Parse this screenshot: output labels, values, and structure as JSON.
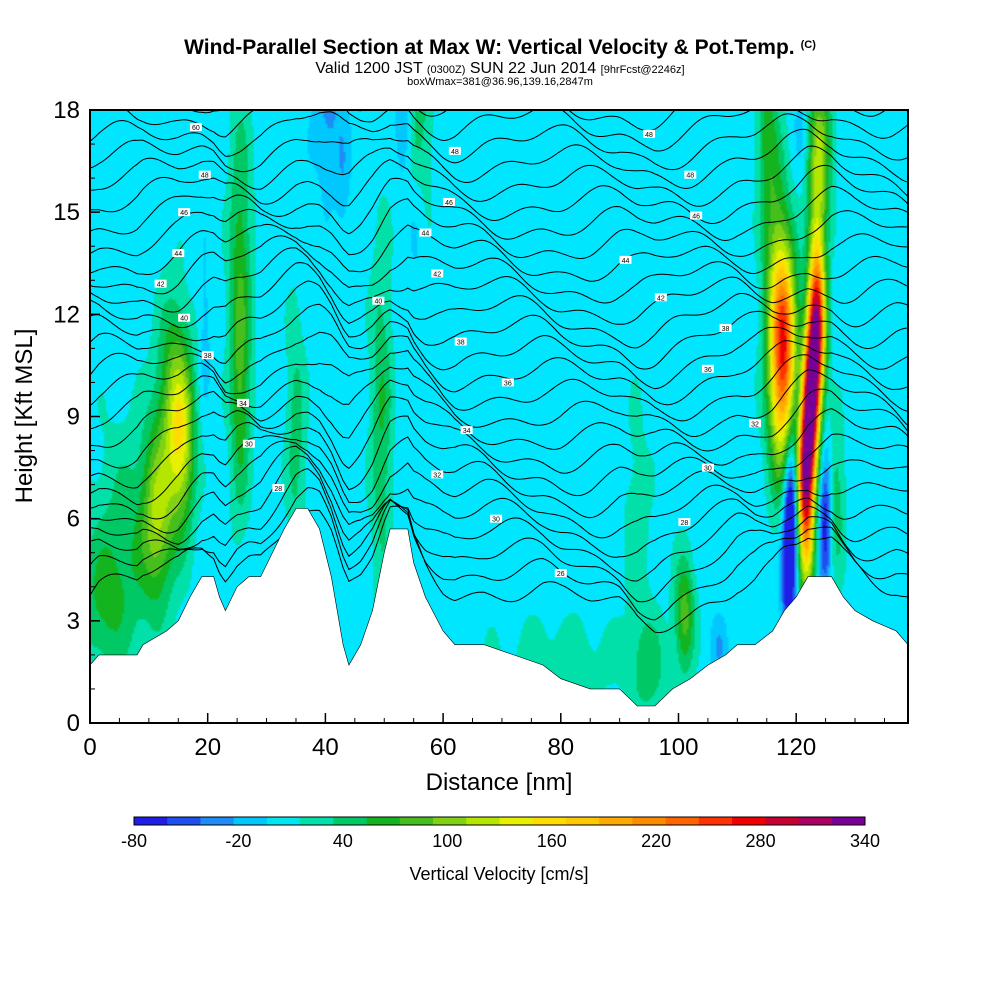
{
  "titles": {
    "main": "Wind-Parallel Section at Max W: Vertical Velocity & Pot.Temp.",
    "copyright": "(C)",
    "valid_prefix": "Valid 1200 JST",
    "valid_utc": "(0300Z)",
    "valid_date": "SUN 22 Jun 2014",
    "forecast": "[9hrFcst@2246z]",
    "boxwmax": "boxWmax=381@36.96,139.16,2847m"
  },
  "chart_data": {
    "type": "heatmap",
    "xlabel": "Distance [nm]",
    "ylabel": "Height [Kft MSL]",
    "xlim": [
      0,
      139
    ],
    "ylim": [
      0,
      18
    ],
    "x_ticks": [
      0,
      20,
      40,
      60,
      80,
      100,
      120
    ],
    "y_ticks": [
      0,
      3,
      6,
      9,
      12,
      15,
      18
    ],
    "grid": false,
    "colorbar": {
      "label": "Vertical Velocity [cm/s]",
      "placement": "bottom",
      "tick_labels": [
        -80,
        -20,
        40,
        100,
        160,
        220,
        280,
        340
      ],
      "levels": [
        -80,
        -60,
        -40,
        -20,
        0,
        20,
        40,
        60,
        80,
        100,
        120,
        140,
        160,
        180,
        200,
        220,
        240,
        260,
        280,
        300,
        320,
        340
      ],
      "colors": [
        "#1e1ee6",
        "#1e50f0",
        "#1e8cf5",
        "#00c8ff",
        "#00e6f0",
        "#00e0a8",
        "#00c864",
        "#14b41e",
        "#46be1e",
        "#82d214",
        "#b4e600",
        "#e6f000",
        "#ffdc00",
        "#ffc800",
        "#ffaa00",
        "#ff8c00",
        "#ff6400",
        "#ff3200",
        "#f00000",
        "#c80032",
        "#aa0064",
        "#780096"
      ],
      "background_value_color": "#00e6ff"
    },
    "terrain": [
      [
        0,
        1.7
      ],
      [
        1.5,
        2.0
      ],
      [
        8,
        2.0
      ],
      [
        9,
        2.3
      ],
      [
        13,
        2.7
      ],
      [
        15,
        3.0
      ],
      [
        17,
        3.7
      ],
      [
        19,
        4.3
      ],
      [
        21,
        4.3
      ],
      [
        22,
        3.7
      ],
      [
        23,
        3.3
      ],
      [
        25,
        4.0
      ],
      [
        27,
        4.3
      ],
      [
        29,
        4.3
      ],
      [
        31,
        5.0
      ],
      [
        33,
        5.7
      ],
      [
        35,
        6.3
      ],
      [
        37,
        6.3
      ],
      [
        39,
        5.7
      ],
      [
        41,
        4.3
      ],
      [
        42,
        3.3
      ],
      [
        43,
        2.3
      ],
      [
        44,
        1.7
      ],
      [
        46,
        2.3
      ],
      [
        48,
        3.3
      ],
      [
        50,
        5.0
      ],
      [
        51,
        5.7
      ],
      [
        54,
        5.7
      ],
      [
        55,
        4.7
      ],
      [
        57,
        3.7
      ],
      [
        60,
        2.7
      ],
      [
        62,
        2.3
      ],
      [
        67,
        2.3
      ],
      [
        72,
        2.0
      ],
      [
        77,
        1.7
      ],
      [
        80,
        1.3
      ],
      [
        85,
        1.0
      ],
      [
        90,
        1.0
      ],
      [
        93,
        0.5
      ],
      [
        96,
        0.5
      ],
      [
        99,
        1.0
      ],
      [
        102,
        1.3
      ],
      [
        105,
        1.7
      ],
      [
        108,
        2.0
      ],
      [
        110,
        2.3
      ],
      [
        113,
        2.3
      ],
      [
        116,
        2.7
      ],
      [
        118,
        3.3
      ],
      [
        120,
        3.7
      ],
      [
        122,
        4.3
      ],
      [
        126,
        4.3
      ],
      [
        128,
        3.7
      ],
      [
        130,
        3.3
      ],
      [
        133,
        3.0
      ],
      [
        137,
        2.7
      ],
      [
        139,
        2.3
      ]
    ],
    "theta_contours": {
      "base_kft": 2.8,
      "spacing_kft": 0.58,
      "count": 27,
      "labels": [
        {
          "x": 18,
          "y": 17.5,
          "text": "60"
        },
        {
          "x": 19.5,
          "y": 16.1,
          "text": "48"
        },
        {
          "x": 16,
          "y": 15.0,
          "text": "46"
        },
        {
          "x": 15,
          "y": 13.8,
          "text": "44"
        },
        {
          "x": 12,
          "y": 12.9,
          "text": "42"
        },
        {
          "x": 16,
          "y": 11.9,
          "text": "40"
        },
        {
          "x": 20,
          "y": 10.8,
          "text": "38"
        },
        {
          "x": 26,
          "y": 9.4,
          "text": "34"
        },
        {
          "x": 27,
          "y": 8.2,
          "text": "30"
        },
        {
          "x": 32,
          "y": 6.9,
          "text": "28"
        },
        {
          "x": 49,
          "y": 12.4,
          "text": "40"
        },
        {
          "x": 62,
          "y": 16.8,
          "text": "48"
        },
        {
          "x": 61,
          "y": 15.3,
          "text": "46"
        },
        {
          "x": 57,
          "y": 14.4,
          "text": "44"
        },
        {
          "x": 59,
          "y": 13.2,
          "text": "42"
        },
        {
          "x": 63,
          "y": 11.2,
          "text": "38"
        },
        {
          "x": 71,
          "y": 10.0,
          "text": "36"
        },
        {
          "x": 64,
          "y": 8.6,
          "text": "34"
        },
        {
          "x": 59,
          "y": 7.3,
          "text": "32"
        },
        {
          "x": 69,
          "y": 6.0,
          "text": "30"
        },
        {
          "x": 80,
          "y": 4.4,
          "text": "26"
        },
        {
          "x": 95,
          "y": 17.3,
          "text": "48"
        },
        {
          "x": 102,
          "y": 16.1,
          "text": "48"
        },
        {
          "x": 103,
          "y": 14.9,
          "text": "46"
        },
        {
          "x": 91,
          "y": 13.6,
          "text": "44"
        },
        {
          "x": 97,
          "y": 12.5,
          "text": "42"
        },
        {
          "x": 108,
          "y": 11.6,
          "text": "38"
        },
        {
          "x": 105,
          "y": 10.4,
          "text": "36"
        },
        {
          "x": 113,
          "y": 8.8,
          "text": "32"
        },
        {
          "x": 105,
          "y": 7.5,
          "text": "30"
        },
        {
          "x": 101,
          "y": 5.9,
          "text": "28"
        }
      ]
    },
    "features": [
      {
        "x": 15.5,
        "y": 8.3,
        "sx": 1.6,
        "sy": 1.8,
        "value": 115
      },
      {
        "x": 11.5,
        "y": 6.2,
        "sx": 1.8,
        "sy": 1.7,
        "value": 90
      },
      {
        "x": 14,
        "y": 9.8,
        "sx": 2.0,
        "sy": 2.0,
        "value": 60
      },
      {
        "x": 7,
        "y": 5.2,
        "sx": 4.5,
        "sy": 2.5,
        "value": 40
      },
      {
        "x": 2,
        "y": 3.5,
        "sx": 3,
        "sy": 1.5,
        "value": 40
      },
      {
        "x": 19.5,
        "y": 11.5,
        "sx": 0.7,
        "sy": 1.6,
        "value": -20
      },
      {
        "x": 25.5,
        "y": 13.5,
        "sx": 1.4,
        "sy": 3.5,
        "value": 55
      },
      {
        "x": 25.5,
        "y": 9.5,
        "sx": 1.2,
        "sy": 2.5,
        "value": 45
      },
      {
        "x": 35,
        "y": 8.5,
        "sx": 1.2,
        "sy": 2.5,
        "value": 40
      },
      {
        "x": 40.5,
        "y": 17.8,
        "sx": 1.8,
        "sy": 1.5,
        "value": -35
      },
      {
        "x": 43,
        "y": 16.0,
        "sx": 0.8,
        "sy": 1.2,
        "value": -20
      },
      {
        "x": 49.5,
        "y": 9.0,
        "sx": 1.3,
        "sy": 3.5,
        "value": 50
      },
      {
        "x": 53.5,
        "y": 17.8,
        "sx": 1.0,
        "sy": 1.5,
        "value": -50
      },
      {
        "x": 55.5,
        "y": 17.5,
        "sx": 1.8,
        "sy": 1.8,
        "value": 45
      },
      {
        "x": 55.5,
        "y": 15.0,
        "sx": 1.0,
        "sy": 1.5,
        "value": -20
      },
      {
        "x": 80,
        "y": 1.8,
        "sx": 9,
        "sy": 1.0,
        "value": 20
      },
      {
        "x": 95,
        "y": 1.6,
        "sx": 2,
        "sy": 1.1,
        "value": 40
      },
      {
        "x": 101,
        "y": 3.2,
        "sx": 1.2,
        "sy": 1.2,
        "value": 80
      },
      {
        "x": 107,
        "y": 2.2,
        "sx": 1.0,
        "sy": 0.6,
        "value": -30
      },
      {
        "x": 93,
        "y": 6.0,
        "sx": 1.8,
        "sy": 2.5,
        "value": 20
      },
      {
        "x": 118,
        "y": 11.5,
        "sx": 1.5,
        "sy": 1.8,
        "value": 170
      },
      {
        "x": 117.5,
        "y": 9.5,
        "sx": 1.6,
        "sy": 2.0,
        "value": 120
      },
      {
        "x": 116.5,
        "y": 13.5,
        "sx": 1.6,
        "sy": 2.5,
        "value": 70
      },
      {
        "x": 122.5,
        "y": 9.5,
        "sx": 1.0,
        "sy": 1.4,
        "value": 330
      },
      {
        "x": 123.5,
        "y": 11.5,
        "sx": 1.0,
        "sy": 1.4,
        "value": 230
      },
      {
        "x": 123.5,
        "y": 13.5,
        "sx": 1.1,
        "sy": 2.0,
        "value": 110
      },
      {
        "x": 121.5,
        "y": 7.5,
        "sx": 1.0,
        "sy": 1.2,
        "value": 250
      },
      {
        "x": 121.8,
        "y": 5.5,
        "sx": 1.0,
        "sy": 1.4,
        "value": 160
      },
      {
        "x": 124,
        "y": 17.0,
        "sx": 1.4,
        "sy": 1.6,
        "value": 90
      },
      {
        "x": 119,
        "y": 6.0,
        "sx": 0.8,
        "sy": 1.6,
        "value": -140
      },
      {
        "x": 118.5,
        "y": 4.0,
        "sx": 0.8,
        "sy": 1.2,
        "value": -60
      },
      {
        "x": 125,
        "y": 6.0,
        "sx": 0.8,
        "sy": 1.5,
        "value": -100
      },
      {
        "x": 120,
        "y": 9.0,
        "sx": 0.7,
        "sy": 1.2,
        "value": -30
      },
      {
        "x": 126.5,
        "y": 6.5,
        "sx": 1.2,
        "sy": 1.6,
        "value": 50
      },
      {
        "x": 115,
        "y": 17.3,
        "sx": 1.2,
        "sy": 1.5,
        "value": 50
      },
      {
        "x": 121,
        "y": 17.8,
        "sx": 1.0,
        "sy": 1.2,
        "value": -20
      }
    ]
  }
}
